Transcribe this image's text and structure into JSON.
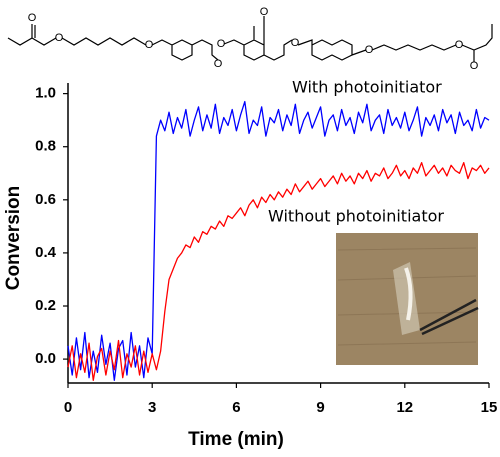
{
  "molecule": {
    "atom_labels": [
      "O",
      "O",
      "O",
      "O",
      "O",
      "O",
      "O",
      "O",
      "O",
      "O"
    ]
  },
  "chart_data": {
    "type": "line",
    "x_label": "Time (min)",
    "y_label": "Conversion",
    "annotations": [
      "With photoinitiator",
      "Without photoinitiator"
    ],
    "xlim": [
      0,
      15
    ],
    "xticks": [
      0,
      3,
      6,
      9,
      12,
      15
    ],
    "ylim": [
      -0.09,
      1.04
    ],
    "yticks": [
      {
        "value": 0,
        "label": "0.0"
      },
      {
        "value": 0.2,
        "label": "0.2"
      },
      {
        "value": 0.4,
        "label": "0.4"
      },
      {
        "value": 0.6,
        "label": "0.6"
      },
      {
        "value": 0.8,
        "label": "0.8"
      },
      {
        "value": 1,
        "label": "1.0"
      }
    ],
    "x": [
      0,
      0.15,
      0.3,
      0.45,
      0.6,
      0.75,
      0.9,
      1.05,
      1.2,
      1.35,
      1.5,
      1.65,
      1.8,
      1.95,
      2.1,
      2.25,
      2.4,
      2.55,
      2.7,
      2.85,
      3,
      3.15,
      3.3,
      3.45,
      3.6,
      3.75,
      3.9,
      4.05,
      4.2,
      4.35,
      4.5,
      4.65,
      4.8,
      4.95,
      5.1,
      5.25,
      5.4,
      5.55,
      5.7,
      5.85,
      6,
      6.15,
      6.3,
      6.45,
      6.6,
      6.75,
      6.9,
      7.05,
      7.2,
      7.35,
      7.5,
      7.65,
      7.8,
      7.95,
      8.1,
      8.25,
      8.4,
      8.55,
      8.7,
      8.85,
      9,
      9.15,
      9.3,
      9.45,
      9.6,
      9.75,
      9.9,
      10.05,
      10.2,
      10.35,
      10.5,
      10.65,
      10.8,
      10.95,
      11.1,
      11.25,
      11.4,
      11.55,
      11.7,
      11.85,
      12,
      12.15,
      12.3,
      12.45,
      12.6,
      12.75,
      12.9,
      13.05,
      13.2,
      13.35,
      13.5,
      13.65,
      13.8,
      13.95,
      14.1,
      14.25,
      14.4,
      14.55,
      14.7,
      14.85,
      15
    ],
    "series": [
      {
        "color": "#0000ff",
        "values": [
          0.05,
          -0.06,
          0.08,
          -0.04,
          0.1,
          -0.07,
          0.03,
          -0.05,
          0.09,
          -0.02,
          0.06,
          -0.08,
          0.04,
          0.07,
          -0.06,
          0.1,
          -0.03,
          0.05,
          -0.07,
          0.08,
          0.02,
          0.84,
          0.9,
          0.86,
          0.93,
          0.85,
          0.91,
          0.87,
          0.94,
          0.84,
          0.9,
          0.95,
          0.86,
          0.92,
          0.87,
          0.96,
          0.85,
          0.91,
          0.88,
          0.94,
          0.86,
          0.92,
          0.97,
          0.85,
          0.9,
          0.88,
          0.95,
          0.84,
          0.91,
          0.89,
          0.94,
          0.86,
          0.92,
          0.88,
          0.96,
          0.85,
          0.9,
          0.93,
          0.87,
          0.91,
          0.95,
          0.84,
          0.9,
          0.92,
          0.86,
          0.94,
          0.88,
          0.91,
          0.85,
          0.93,
          0.89,
          0.96,
          0.86,
          0.9,
          0.92,
          0.85,
          0.94,
          0.88,
          0.91,
          0.87,
          0.93,
          0.86,
          0.9,
          0.95,
          0.84,
          0.91,
          0.88,
          0.92,
          0.86,
          0.94,
          0.89,
          0.92,
          0.85,
          0.93,
          0.88,
          0.9,
          0.86,
          0.94,
          0.87,
          0.91,
          0.9
        ]
      },
      {
        "color": "#ff0000",
        "values": [
          -0.03,
          0.05,
          -0.07,
          0.02,
          -0.05,
          0.06,
          -0.08,
          0.01,
          0.04,
          -0.06,
          0.03,
          -0.04,
          0.07,
          -0.07,
          0.02,
          -0.03,
          0.05,
          -0.06,
          0.03,
          -0.05,
          0.02,
          -0.04,
          0.03,
          0.18,
          0.3,
          0.34,
          0.38,
          0.4,
          0.43,
          0.42,
          0.46,
          0.44,
          0.48,
          0.47,
          0.5,
          0.49,
          0.52,
          0.5,
          0.54,
          0.53,
          0.55,
          0.57,
          0.54,
          0.58,
          0.6,
          0.57,
          0.61,
          0.59,
          0.62,
          0.6,
          0.63,
          0.61,
          0.64,
          0.62,
          0.66,
          0.63,
          0.65,
          0.67,
          0.64,
          0.66,
          0.68,
          0.65,
          0.67,
          0.69,
          0.66,
          0.7,
          0.67,
          0.69,
          0.66,
          0.7,
          0.68,
          0.71,
          0.67,
          0.7,
          0.69,
          0.72,
          0.68,
          0.7,
          0.73,
          0.69,
          0.71,
          0.68,
          0.72,
          0.7,
          0.74,
          0.69,
          0.71,
          0.73,
          0.7,
          0.72,
          0.69,
          0.73,
          0.71,
          0.7,
          0.74,
          0.68,
          0.72,
          0.71,
          0.73,
          0.7,
          0.72
        ]
      }
    ]
  }
}
